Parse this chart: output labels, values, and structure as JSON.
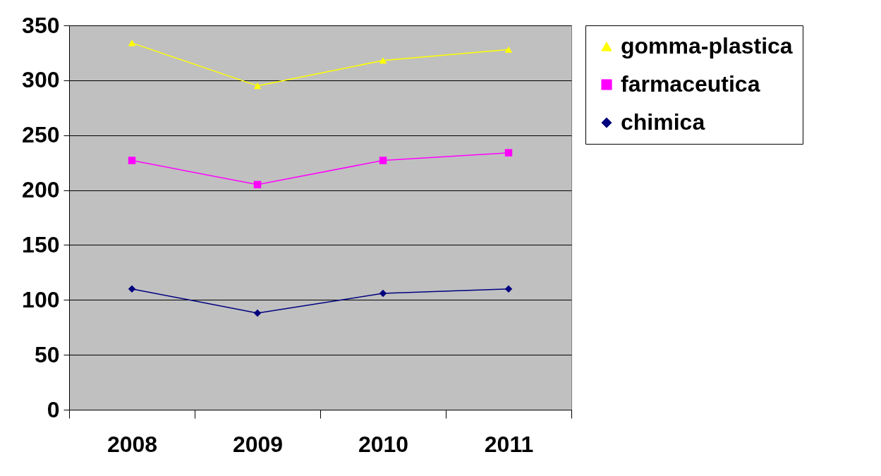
{
  "chart_data": {
    "type": "line",
    "categories": [
      "2008",
      "2009",
      "2010",
      "2011"
    ],
    "series": [
      {
        "name": "gomma-plastica",
        "color": "#ffff00",
        "marker": "triangle",
        "values": [
          334,
          295,
          318,
          328
        ]
      },
      {
        "name": "farmaceutica",
        "color": "#ff00ff",
        "marker": "square",
        "values": [
          227,
          205,
          227,
          234
        ]
      },
      {
        "name": "chimica",
        "color": "#000080",
        "marker": "diamond",
        "values": [
          110,
          88,
          106,
          110
        ]
      }
    ],
    "ylim": [
      0,
      350
    ],
    "yticks": [
      0,
      50,
      100,
      150,
      200,
      250,
      300,
      350
    ],
    "grid": "y",
    "legend": "right"
  }
}
